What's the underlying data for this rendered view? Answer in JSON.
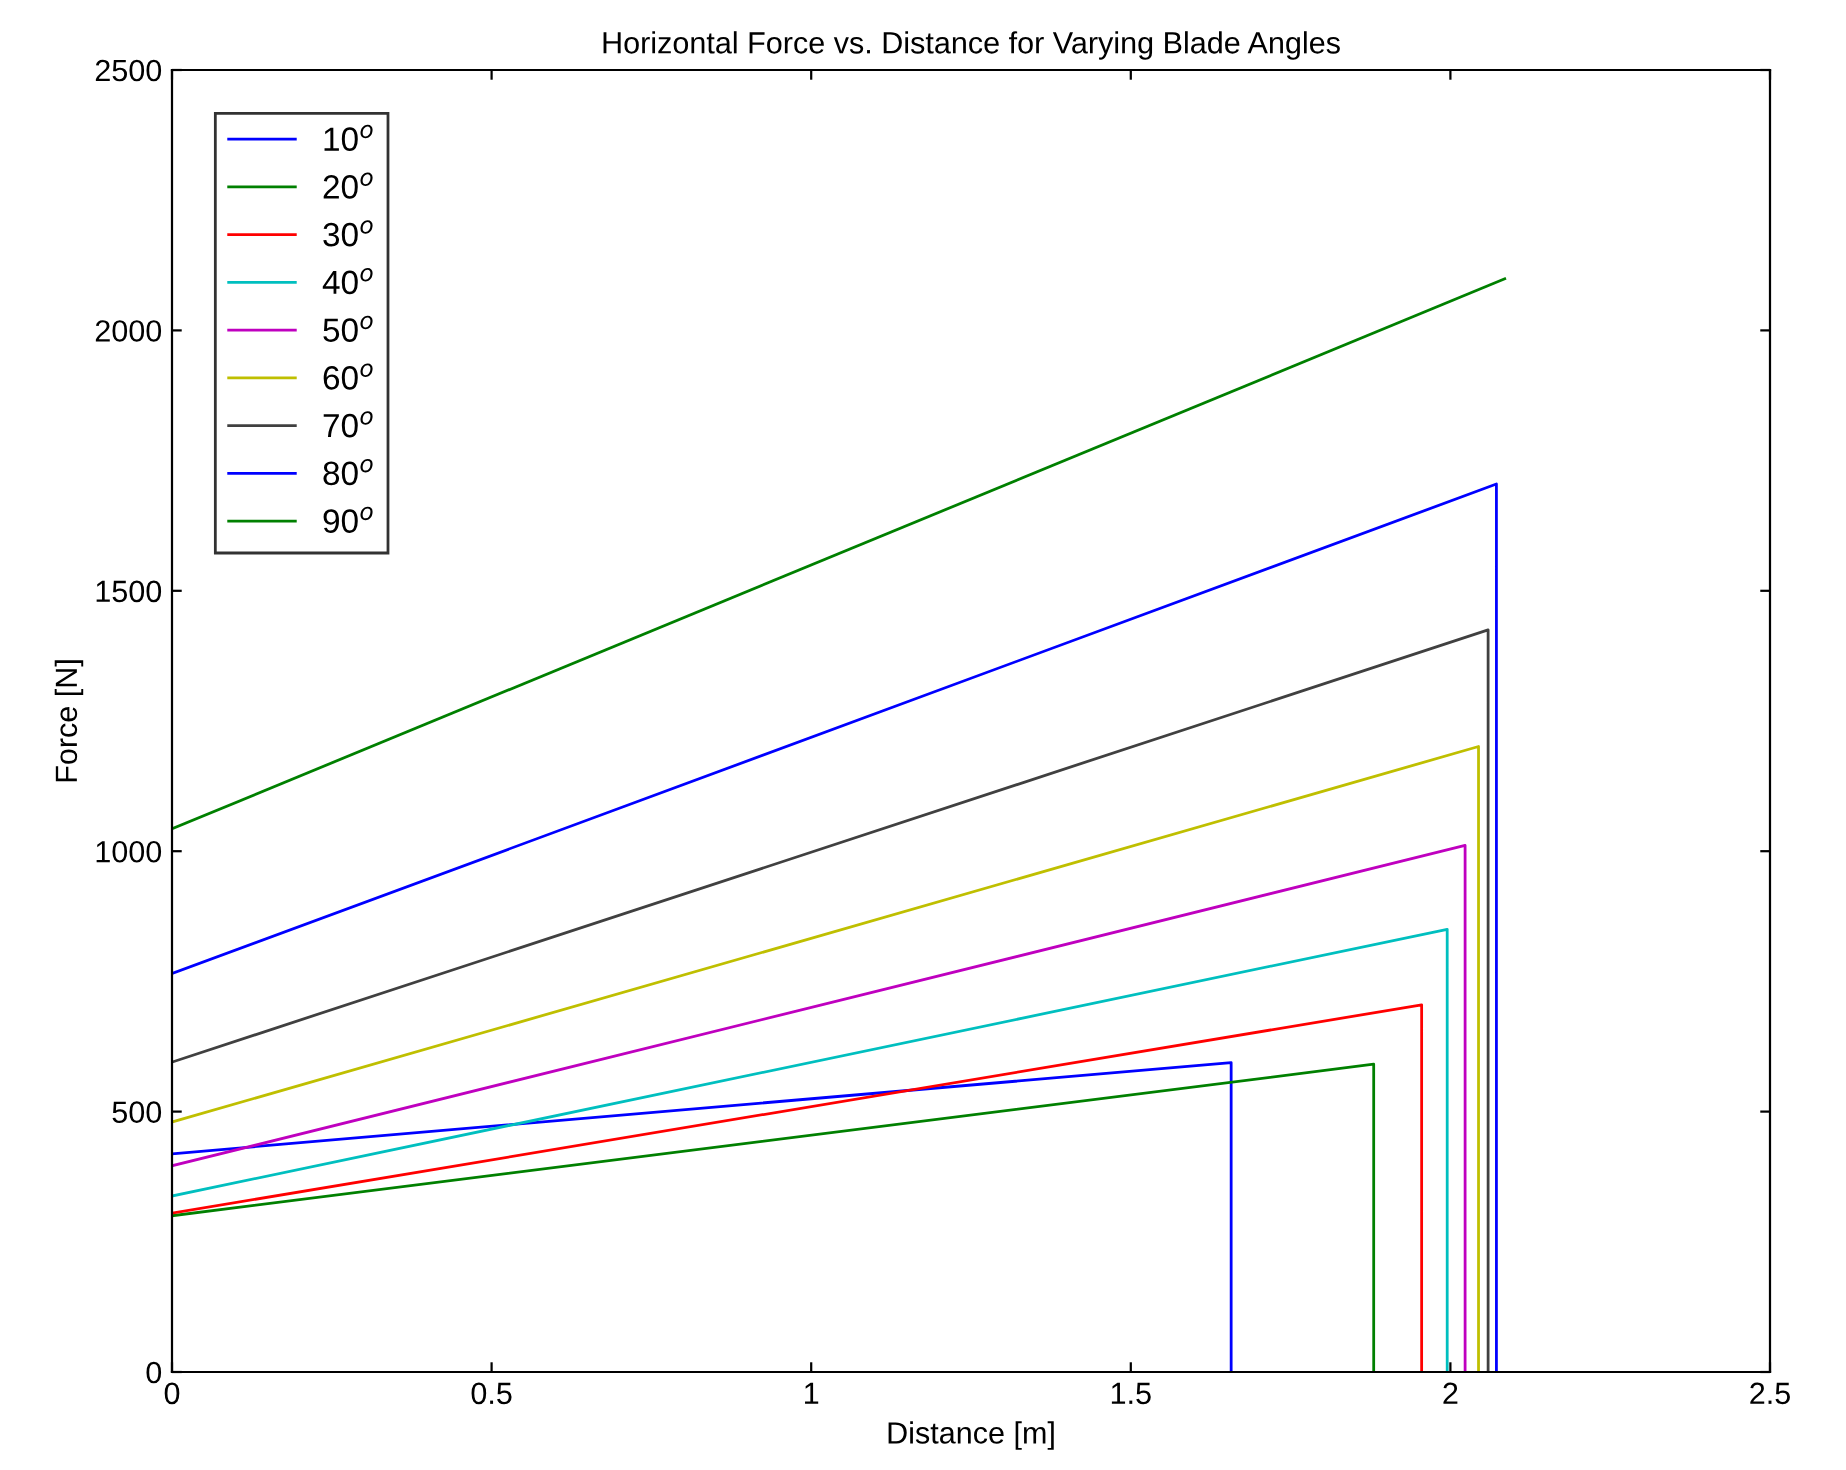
{
  "chart_data": {
    "type": "line",
    "title": "Horizontal Force vs. Distance for Varying Blade Angles",
    "xlabel": "Distance [m]",
    "ylabel": "Force [N]",
    "xlim": [
      0,
      2.5
    ],
    "ylim": [
      0,
      2500
    ],
    "xticks": [
      0,
      0.5,
      1,
      1.5,
      2,
      2.5
    ],
    "yticks": [
      0,
      500,
      1000,
      1500,
      2000,
      2500
    ],
    "grid": false,
    "legend": "top left",
    "marker": "none",
    "line_style": "solid",
    "series": [
      {
        "name": "10$^{o}$",
        "color": "#0000ff",
        "x": [
          0,
          1.657,
          1.657
        ],
        "values": [
          419,
          594,
          0
        ]
      },
      {
        "name": "20$^{o}$",
        "color": "#008000",
        "x": [
          0,
          1.88,
          1.88
        ],
        "values": [
          300,
          591,
          0
        ]
      },
      {
        "name": "30$^{o}$",
        "color": "#ff0000",
        "x": [
          0,
          1.955,
          1.955
        ],
        "values": [
          305,
          705,
          0
        ]
      },
      {
        "name": "40$^{o}$",
        "color": "#00bfbf",
        "x": [
          0,
          1.995,
          1.995
        ],
        "values": [
          338,
          850,
          0
        ]
      },
      {
        "name": "50$^{o}$",
        "color": "#bf00bf",
        "x": [
          0,
          2.023,
          2.023
        ],
        "values": [
          396,
          1011,
          0
        ]
      },
      {
        "name": "60$^{o}$",
        "color": "#bfbf00",
        "x": [
          0,
          2.044,
          2.044
        ],
        "values": [
          480,
          1201,
          0
        ]
      },
      {
        "name": "70$^{o}$",
        "color": "#404040",
        "x": [
          0,
          2.059,
          2.059
        ],
        "values": [
          595,
          1425,
          0
        ]
      },
      {
        "name": "80$^{o}$",
        "color": "#0000ff",
        "x": [
          0,
          2.072,
          2.072
        ],
        "values": [
          765,
          1705,
          0
        ]
      },
      {
        "name": "90$^{o}$",
        "color": "#008000",
        "x": [
          0,
          2.085
        ],
        "values": [
          1043,
          2099
        ]
      }
    ]
  }
}
